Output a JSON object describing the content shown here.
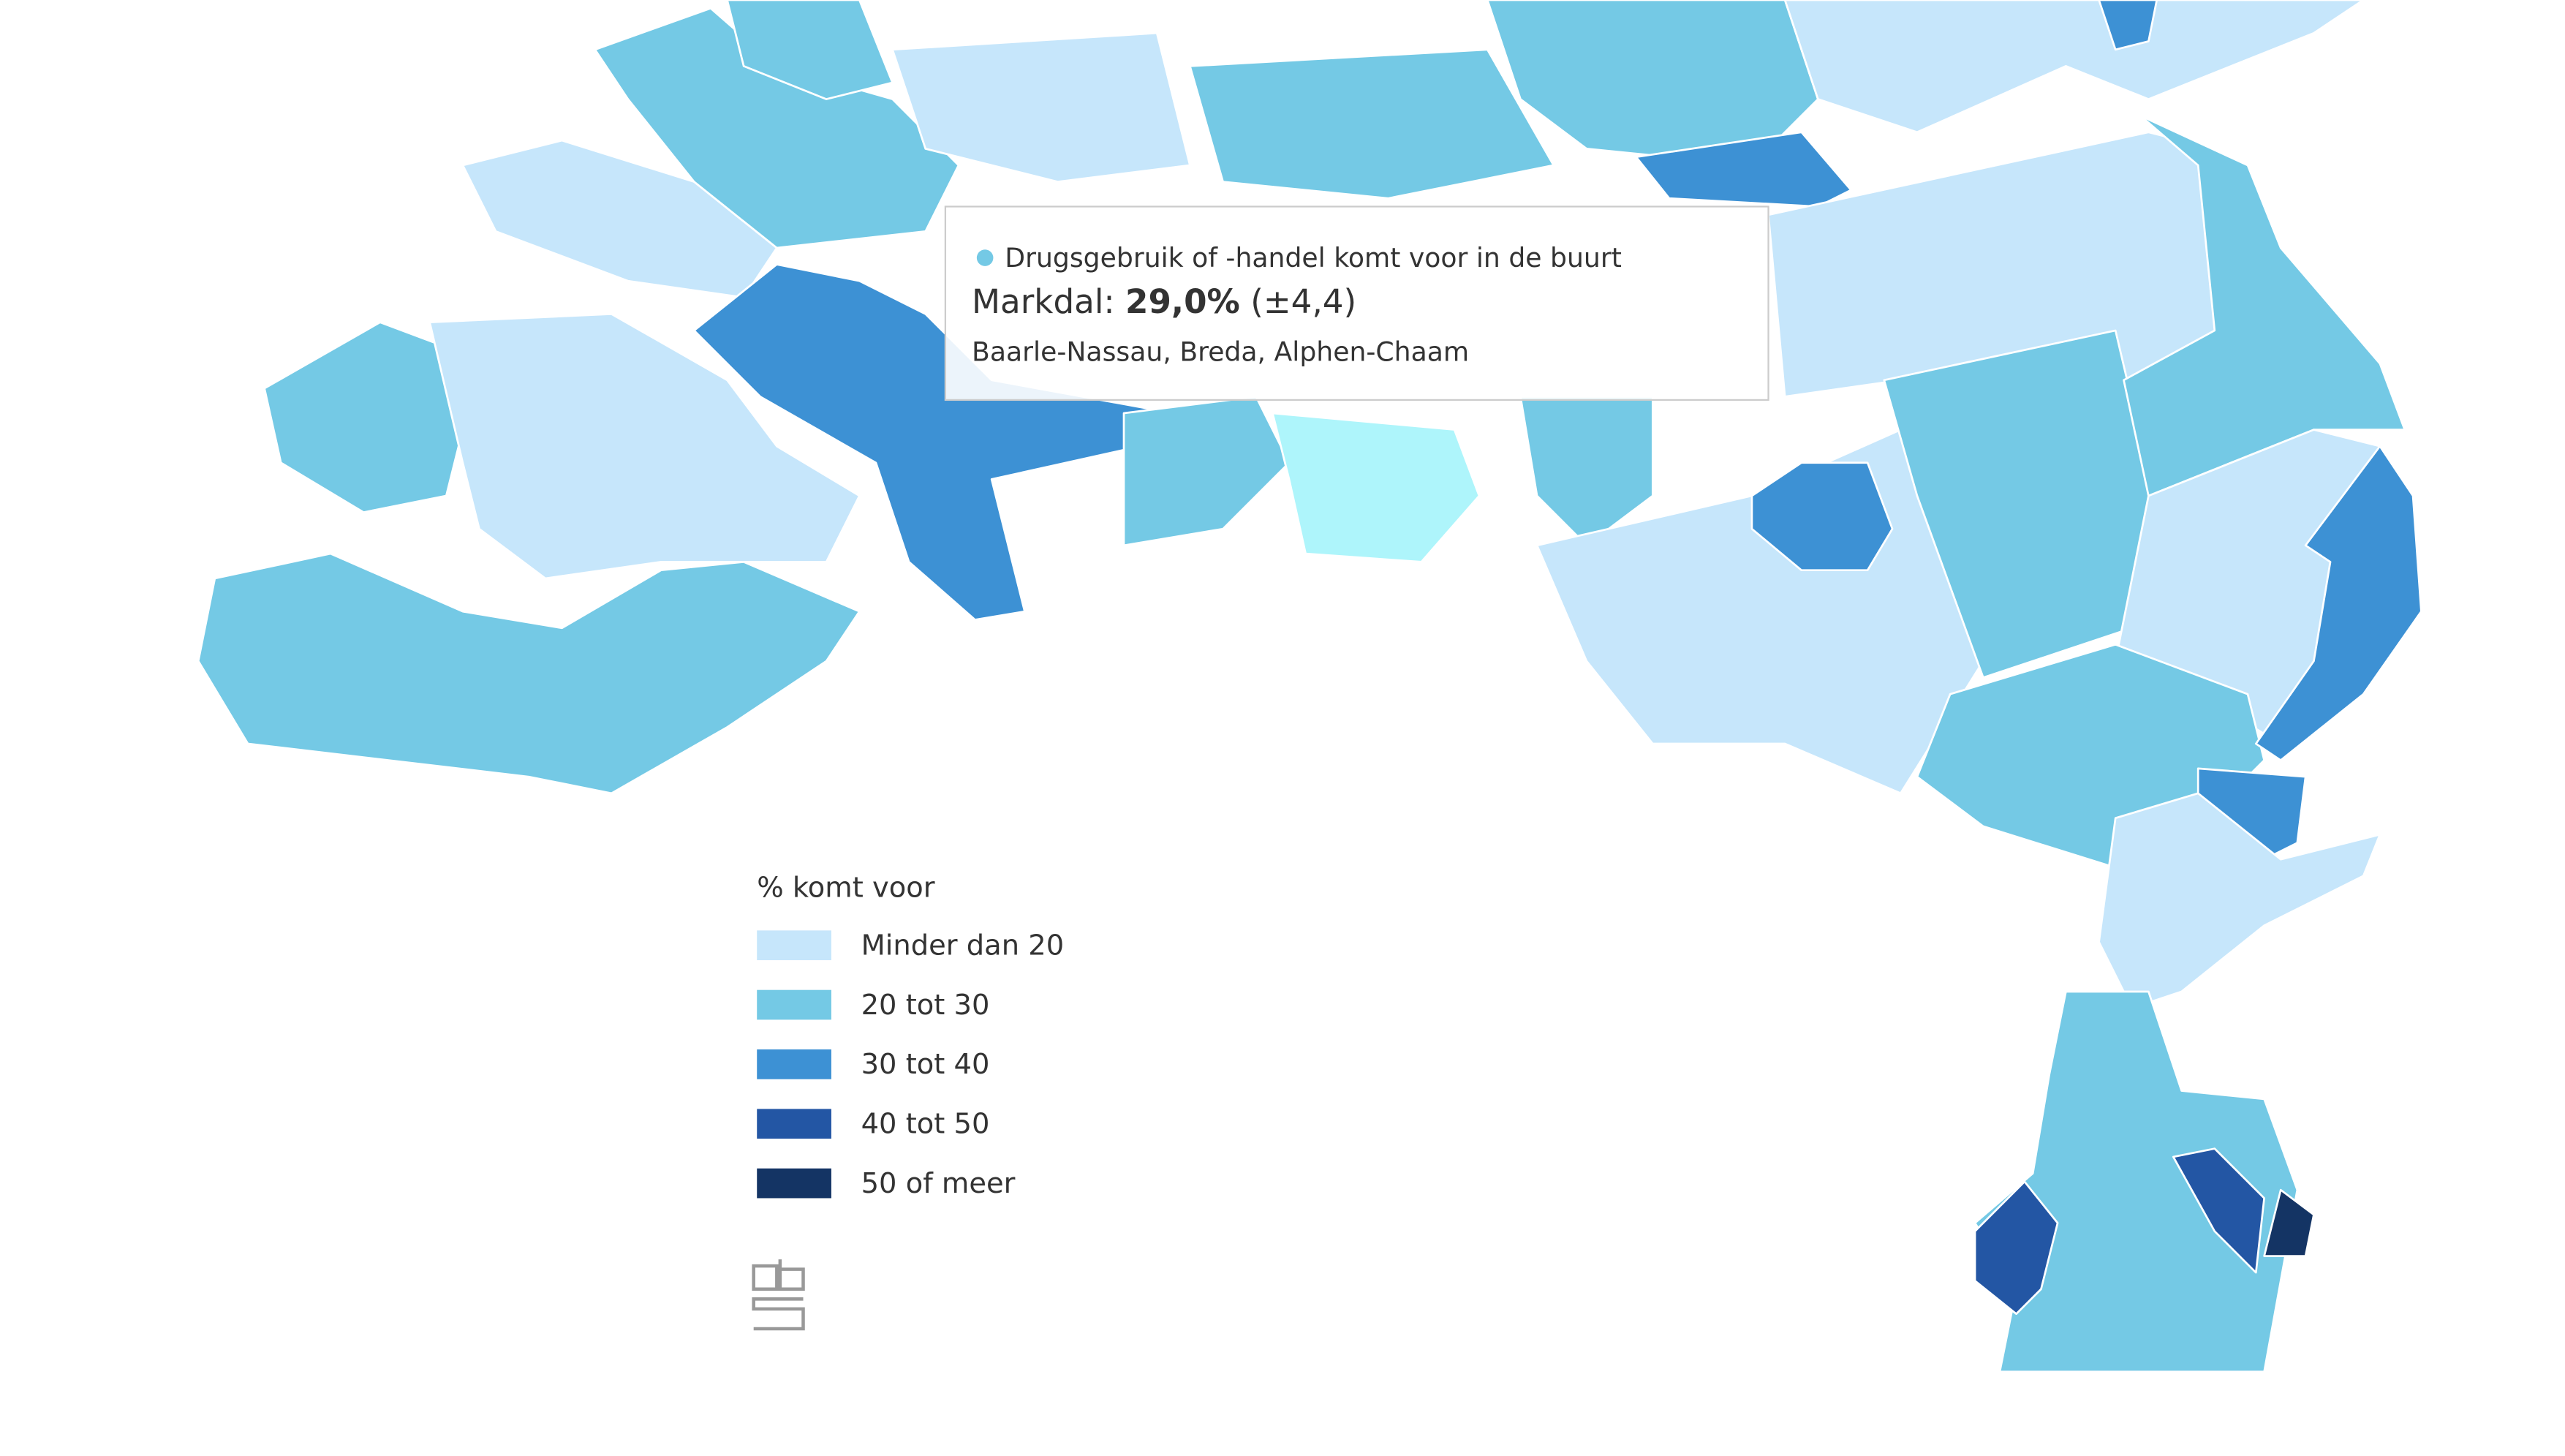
{
  "tooltip": {
    "series": "Drugsgebruik of -handel komt voor in de buurt",
    "region": "Markdal:",
    "value": "29,0%",
    "margin": "(±4,4)",
    "municipalities": "Baarle-Nassau, Breda, Alphen-Chaam"
  },
  "legend": {
    "title": "% komt voor",
    "items": [
      {
        "label": "Minder dan 20",
        "color": "#c6e6fb"
      },
      {
        "label": "20 tot 30",
        "color": "#74c9e5"
      },
      {
        "label": "30 tot 40",
        "color": "#3d91d4"
      },
      {
        "label": "40 tot 50",
        "color": "#2356a4"
      },
      {
        "label": "50 of meer",
        "color": "#143464"
      }
    ]
  }
}
